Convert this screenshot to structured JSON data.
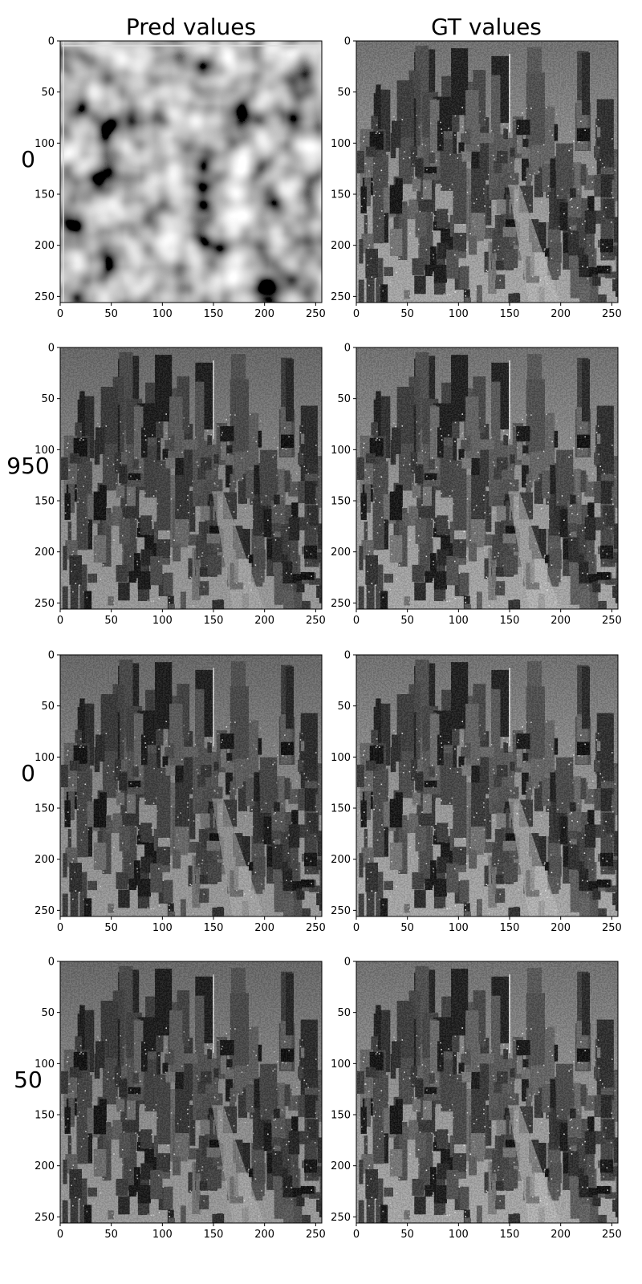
{
  "figure": {
    "column_titles": [
      "Pred values",
      "GT values"
    ],
    "row_labels": [
      "0",
      "950",
      "0",
      "50"
    ]
  },
  "chart_data": {
    "type": "heatmap",
    "colormap": "gray",
    "xlim": [
      0,
      256
    ],
    "ylim": [
      256,
      0
    ],
    "x_ticks": [
      0,
      50,
      100,
      150,
      200,
      250
    ],
    "y_ticks": [
      0,
      50,
      100,
      150,
      200,
      250
    ],
    "grid": false,
    "panels": [
      {
        "row": 0,
        "col": 0,
        "content": "blurry-noise"
      },
      {
        "row": 0,
        "col": 1,
        "content": "city"
      },
      {
        "row": 1,
        "col": 0,
        "content": "city-pred"
      },
      {
        "row": 1,
        "col": 1,
        "content": "city"
      },
      {
        "row": 2,
        "col": 0,
        "content": "city-pred"
      },
      {
        "row": 2,
        "col": 1,
        "content": "city"
      },
      {
        "row": 3,
        "col": 0,
        "content": "city-pred"
      },
      {
        "row": 3,
        "col": 1,
        "content": "city"
      }
    ]
  }
}
